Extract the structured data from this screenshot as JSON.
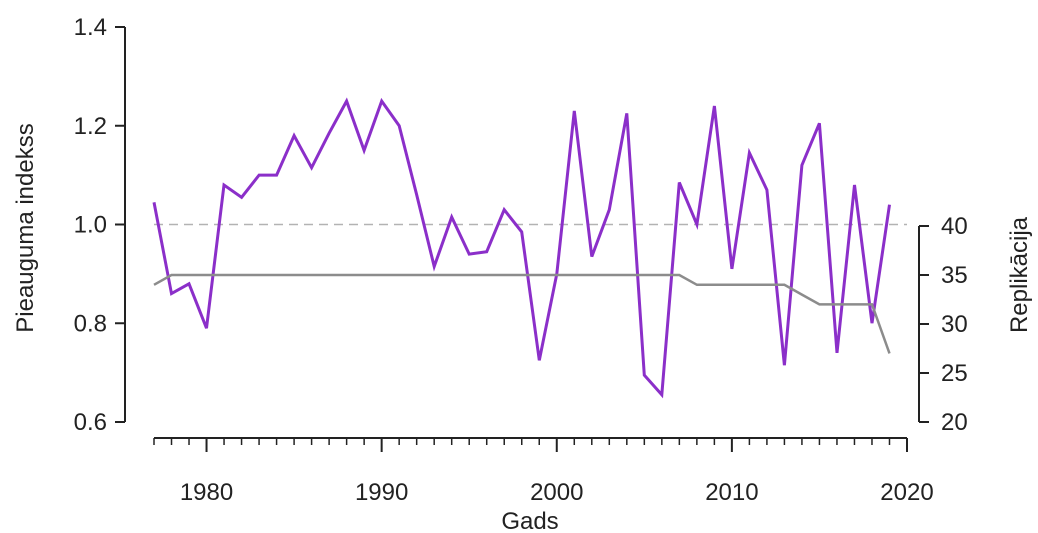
{
  "chart_data": {
    "type": "line",
    "xlabel": "Gads",
    "ylabel": "Pieauguma indekss",
    "y2label": "Replikācija",
    "xlim": [
      1977,
      2020
    ],
    "ylim": [
      0.6,
      1.4
    ],
    "y2lim": [
      20,
      40
    ],
    "xticks": [
      1980,
      1990,
      2000,
      2010,
      2020
    ],
    "yticks": [
      0.6,
      0.8,
      1.0,
      1.2,
      1.4
    ],
    "y2ticks": [
      20,
      25,
      30,
      35,
      40
    ],
    "yticklabels": [
      "0.6",
      "0.8",
      "1.0",
      "1.2",
      "1.4"
    ],
    "reference_line": 1.0,
    "grid": false,
    "x": [
      1977,
      1978,
      1979,
      1980,
      1981,
      1982,
      1983,
      1984,
      1985,
      1986,
      1987,
      1988,
      1989,
      1990,
      1991,
      1992,
      1993,
      1994,
      1995,
      1996,
      1997,
      1998,
      1999,
      2000,
      2001,
      2002,
      2003,
      2004,
      2005,
      2006,
      2007,
      2008,
      2009,
      2010,
      2011,
      2012,
      2013,
      2014,
      2015,
      2016,
      2017,
      2018,
      2019
    ],
    "series": [
      {
        "axis": "left",
        "color": "#8b2fc9",
        "values": [
          1.045,
          0.86,
          0.88,
          0.79,
          1.08,
          1.055,
          1.1,
          1.1,
          1.18,
          1.115,
          1.185,
          1.25,
          1.15,
          1.25,
          1.2,
          1.06,
          0.915,
          1.015,
          0.94,
          0.945,
          1.03,
          0.985,
          0.725,
          0.9,
          1.23,
          0.935,
          1.03,
          1.225,
          0.695,
          0.655,
          1.085,
          1.0,
          1.24,
          0.91,
          1.145,
          1.07,
          0.715,
          1.12,
          1.205,
          0.74,
          1.08,
          0.8,
          1.04
        ]
      },
      {
        "axis": "right",
        "color": "#8c8c8c",
        "values": [
          34,
          35,
          35,
          35,
          35,
          35,
          35,
          35,
          35,
          35,
          35,
          35,
          35,
          35,
          35,
          35,
          35,
          35,
          35,
          35,
          35,
          35,
          35,
          35,
          35,
          35,
          35,
          35,
          35,
          35,
          35,
          34,
          34,
          34,
          34,
          34,
          34,
          33,
          32,
          32,
          32,
          32,
          27
        ]
      }
    ]
  }
}
